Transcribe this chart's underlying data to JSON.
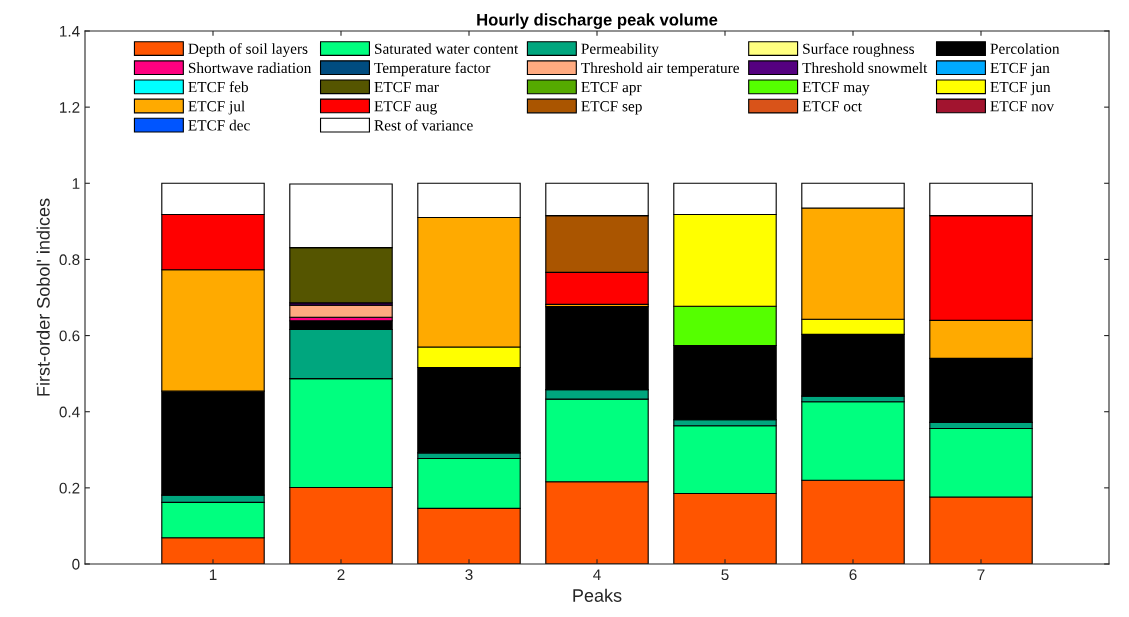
{
  "chart_data": {
    "type": "bar",
    "stacked": true,
    "title": "Hourly discharge peak volume",
    "xlabel": "Peaks",
    "ylabel": "First-order Sobol' indices",
    "x": [
      1,
      2,
      3,
      4,
      5,
      6,
      7
    ],
    "xlim": [
      0,
      8
    ],
    "xticks": [
      1,
      2,
      3,
      4,
      5,
      6,
      7
    ],
    "ylim": [
      0,
      1.4
    ],
    "yticks": [
      0,
      0.2,
      0.4,
      0.6,
      0.8,
      1,
      1.2,
      1.4
    ],
    "grid": false,
    "legend": "top",
    "series": [
      {
        "name": "Depth of soil layers",
        "color": "#ff5500",
        "values": [
          0.069,
          0.201,
          0.146,
          0.216,
          0.185,
          0.22,
          0.176
        ]
      },
      {
        "name": "Saturated water content",
        "color": "#00ff7f",
        "values": [
          0.093,
          0.286,
          0.131,
          0.217,
          0.178,
          0.206,
          0.18
        ]
      },
      {
        "name": "Permeability",
        "color": "#00a67e",
        "values": [
          0.019,
          0.129,
          0.015,
          0.025,
          0.016,
          0.015,
          0.016
        ]
      },
      {
        "name": "Surface roughness",
        "color": "#ffff80",
        "values": [
          null,
          null,
          null,
          null,
          null,
          null,
          null
        ]
      },
      {
        "name": "Percolation",
        "color": "#000000",
        "values": [
          0.273,
          0.023,
          0.224,
          0.218,
          0.195,
          0.162,
          0.168
        ]
      },
      {
        "name": "Shortwave radiation",
        "color": "#ff0080",
        "values": [
          null,
          0.009,
          null,
          null,
          null,
          null,
          null
        ]
      },
      {
        "name": "Temperature factor",
        "color": "#004c80",
        "values": [
          null,
          null,
          null,
          null,
          null,
          null,
          null
        ]
      },
      {
        "name": "Threshold air temperature",
        "color": "#ffaa80",
        "values": [
          null,
          0.032,
          null,
          null,
          null,
          null,
          null
        ]
      },
      {
        "name": "Threshold snowmelt",
        "color": "#550080",
        "values": [
          null,
          0.006,
          null,
          null,
          null,
          null,
          null
        ]
      },
      {
        "name": "ETCF jan",
        "color": "#00aaff",
        "values": [
          null,
          null,
          null,
          null,
          null,
          null,
          null
        ]
      },
      {
        "name": "ETCF feb",
        "color": "#00ffff",
        "values": [
          null,
          null,
          null,
          null,
          null,
          null,
          null
        ]
      },
      {
        "name": "ETCF mar",
        "color": "#555500",
        "values": [
          null,
          0.145,
          null,
          null,
          null,
          null,
          null
        ]
      },
      {
        "name": "ETCF apr",
        "color": "#55aa00",
        "values": [
          null,
          null,
          null,
          null,
          null,
          null,
          null
        ]
      },
      {
        "name": "ETCF may",
        "color": "#55ff00",
        "values": [
          null,
          null,
          null,
          null,
          0.103,
          null,
          null
        ]
      },
      {
        "name": "ETCF jun",
        "color": "#ffff00",
        "values": [
          null,
          null,
          0.054,
          null,
          0.241,
          0.04,
          null
        ]
      },
      {
        "name": "ETCF jul",
        "color": "#ffaa00",
        "values": [
          0.319,
          null,
          0.34,
          0.006,
          null,
          0.292,
          0.1
        ]
      },
      {
        "name": "ETCF aug",
        "color": "#ff0000",
        "values": [
          0.145,
          null,
          null,
          0.084,
          null,
          null,
          0.275
        ]
      },
      {
        "name": "ETCF sep",
        "color": "#aa5500",
        "values": [
          null,
          null,
          null,
          0.149,
          null,
          null,
          null
        ]
      },
      {
        "name": "ETCF oct",
        "color": "#d95319",
        "values": [
          null,
          null,
          null,
          null,
          null,
          null,
          null
        ]
      },
      {
        "name": "ETCF nov",
        "color": "#a2142f",
        "values": [
          null,
          null,
          null,
          null,
          null,
          null,
          null
        ]
      },
      {
        "name": "ETCF dec",
        "color": "#0055ff",
        "values": [
          null,
          null,
          null,
          null,
          null,
          null,
          null
        ]
      },
      {
        "name": "Rest of variance",
        "color": "#ffffff",
        "values": [
          0.082,
          0.167,
          0.09,
          0.085,
          0.082,
          0.065,
          0.085
        ]
      }
    ]
  }
}
